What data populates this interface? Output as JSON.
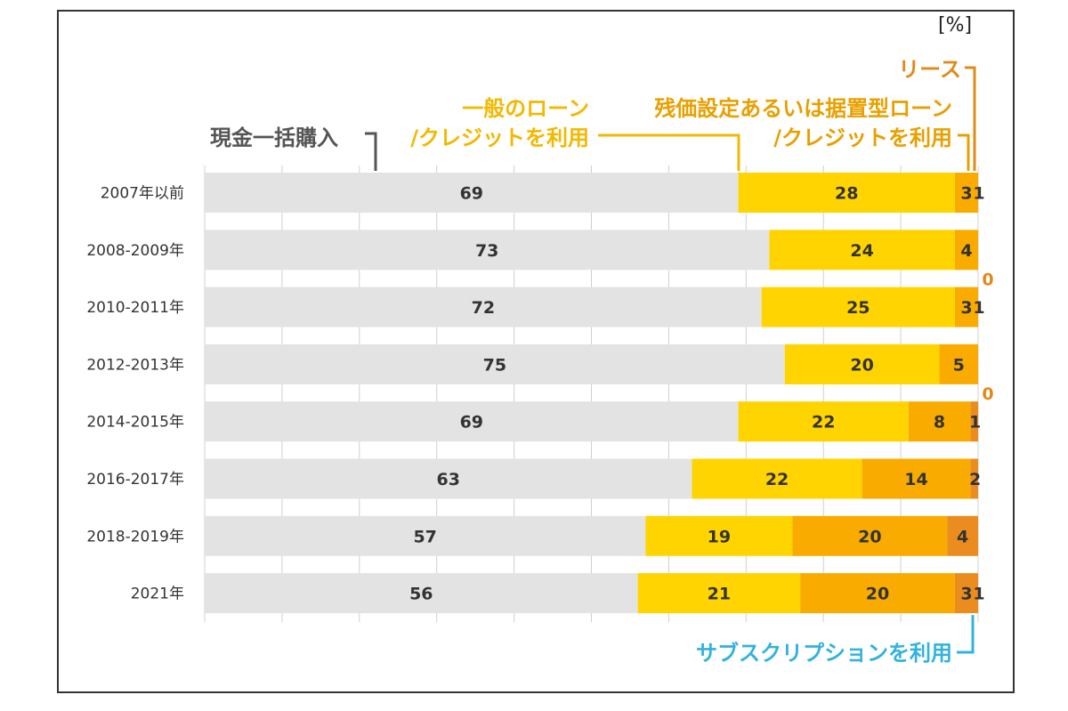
{
  "chart_data": {
    "type": "bar",
    "orientation": "horizontal",
    "stacked": true,
    "unit_label": "[%]",
    "xlim": [
      0,
      100
    ],
    "categories": [
      "2007年以前",
      "2008-2009年",
      "2010-2011年",
      "2012-2013年",
      "2014-2015年",
      "2016-2017年",
      "2018-2019年",
      "2021年"
    ],
    "series": [
      {
        "name": "現金一括購入",
        "name_lines": [
          "現金一括購入"
        ],
        "color": "#e3e3e3",
        "label_color": "#555555",
        "values": [
          69,
          73,
          72,
          75,
          69,
          63,
          57,
          56
        ]
      },
      {
        "name": "一般のローン/クレジットを利用",
        "name_lines": [
          "一般のローン",
          "/クレジットを利用"
        ],
        "color": "#ffd400",
        "label_color": "#f3b800",
        "values": [
          28,
          24,
          25,
          20,
          22,
          22,
          19,
          21
        ]
      },
      {
        "name": "残価設定あるいは据置型ローン/クレジットを利用",
        "name_lines": [
          "残価設定あるいは据置型ローン",
          "/クレジットを利用"
        ],
        "color": "#f9ab00",
        "label_color": "#e8a000",
        "values": [
          3,
          4,
          3,
          5,
          8,
          14,
          20,
          20
        ]
      },
      {
        "name": "リース",
        "name_lines": [
          "リース"
        ],
        "color": "#eb8c1e",
        "label_color": "#e08a1a",
        "values": [
          1,
          0,
          1,
          0,
          1,
          2,
          4,
          3
        ]
      },
      {
        "name": "サブスクリプションを利用",
        "name_lines": [
          "サブスクリプションを利用"
        ],
        "color": "#3cb9e6",
        "label_color": "#33b2e0",
        "values": [
          null,
          null,
          null,
          null,
          null,
          null,
          null,
          1
        ]
      }
    ],
    "grid": true,
    "legend": "callouts"
  }
}
